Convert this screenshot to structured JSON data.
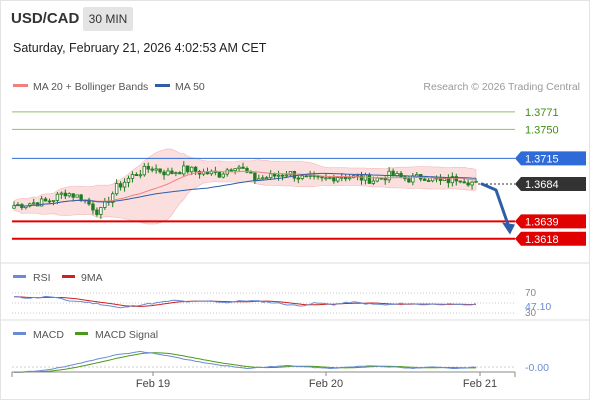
{
  "header": {
    "pair": "USD/CAD",
    "timeframe": "30 MIN",
    "datetime": "Saturday, February 21, 2026 4:02:53 AM CET"
  },
  "legend": {
    "ma20": "MA 20 + Bollinger Bands",
    "ma50": "MA 50",
    "credit": "Research © 2026 Trading Central"
  },
  "colors": {
    "candle": "#1e7d1e",
    "ma20": "#f08080",
    "ma50": "#2e5ea8",
    "band_fill": "#fbdcdc",
    "resistance": "#8cc36a",
    "pivot": "#2f6bd8",
    "support": "#e00000",
    "last": "#333333",
    "rsi": "#6a8bd4",
    "rsi_ma": "#cc2222",
    "macd": "#6a8bd4",
    "macd_signal": "#4a9a1a"
  },
  "chart_data": [
    {
      "type": "candlestick",
      "price_range": [
        1.359,
        1.3795
      ],
      "levels": [
        {
          "label": "1.3771",
          "value": 1.3771,
          "kind": "resistance"
        },
        {
          "label": "1.3750",
          "value": 1.375,
          "kind": "resistance"
        },
        {
          "label": "1.3715",
          "value": 1.3715,
          "kind": "pivot"
        },
        {
          "label": "1.3684",
          "value": 1.3684,
          "kind": "last"
        },
        {
          "label": "1.3639",
          "value": 1.3639,
          "kind": "support"
        },
        {
          "label": "1.3618",
          "value": 1.3618,
          "kind": "support"
        }
      ],
      "close_anchors": [
        1.3658,
        1.3661,
        1.3663,
        1.3674,
        1.3667,
        1.3649,
        1.368,
        1.3695,
        1.3704,
        1.3697,
        1.3702,
        1.3698,
        1.3696,
        1.3708,
        1.369,
        1.3693,
        1.3698,
        1.369,
        1.3689,
        1.3694,
        1.3692,
        1.3689,
        1.3695,
        1.369,
        1.3693,
        1.3686,
        1.3692,
        1.3684
      ],
      "forecast_arrow": {
        "from": 1.3684,
        "to": 1.3628
      },
      "x_labels": [
        "Feb 19",
        "Feb 20",
        "Feb 21"
      ]
    },
    {
      "type": "line",
      "name": "RSI",
      "series": [
        {
          "name": "RSI"
        },
        {
          "name": "9MA"
        }
      ],
      "levels": [
        "70",
        "30"
      ],
      "current": "47.10",
      "anchors": [
        62,
        60,
        63,
        55,
        52,
        47,
        40,
        46,
        50,
        55,
        52,
        54,
        51,
        55,
        53,
        49,
        44,
        50,
        47,
        52,
        48,
        46,
        49,
        47,
        48,
        46,
        47.1
      ]
    },
    {
      "type": "line",
      "name": "MACD",
      "series": [
        {
          "name": "MACD"
        },
        {
          "name": "MACD Signal"
        }
      ],
      "current": "-0.00",
      "anchors": [
        -0.0004,
        -0.0003,
        -0.0001,
        0.0002,
        0.0006,
        0.0009,
        0.0011,
        0.0009,
        0.0006,
        0.0003,
        0.0001,
        -0.0001,
        0.0,
        0.0001,
        0.0,
        -0.0001,
        0.0,
        0.0001,
        0.0,
        -0.0001,
        0.0,
        -0.0001,
        0.0
      ]
    }
  ]
}
